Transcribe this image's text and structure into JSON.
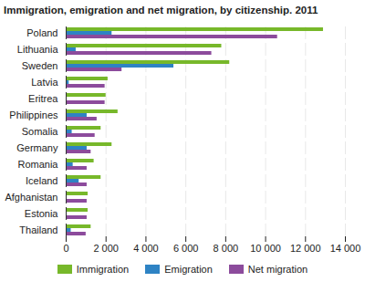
{
  "chart_data": {
    "type": "bar",
    "orientation": "horizontal",
    "title": "Immigration, emigration and net migration, by citizenship. 2011",
    "categories": [
      "Poland",
      "Lithuania",
      "Sweden",
      "Latvia",
      "Eritrea",
      "Philippines",
      "Somalia",
      "Germany",
      "Romania",
      "Iceland",
      "Afghanistan",
      "Estonia",
      "Thailand"
    ],
    "series": [
      {
        "name": "Immigration",
        "color": "#77b82a",
        "values": [
          12900,
          7800,
          8200,
          2100,
          2000,
          2600,
          1750,
          2300,
          1400,
          1750,
          1100,
          1100,
          1250
        ]
      },
      {
        "name": "Emigration",
        "color": "#2e83c4",
        "values": [
          2300,
          500,
          5400,
          150,
          50,
          1050,
          300,
          1050,
          350,
          650,
          50,
          50,
          250
        ]
      },
      {
        "name": "Net migration",
        "color": "#8c4b9c",
        "values": [
          10600,
          7300,
          2800,
          1950,
          1950,
          1550,
          1450,
          1250,
          1050,
          1050,
          1050,
          1050,
          1000
        ]
      }
    ],
    "xlim": [
      0,
      14000
    ],
    "xticks": [
      0,
      {
        "value": 2000,
        "label": "2 000"
      },
      {
        "value": 4000,
        "label": "4 000"
      },
      {
        "value": 6000,
        "label": "6 000"
      },
      {
        "value": 8000,
        "label": "8 000"
      },
      {
        "value": 10000,
        "label": "10 000"
      },
      {
        "value": 12000,
        "label": "12 000"
      },
      {
        "value": 14000,
        "label": "14 000"
      }
    ],
    "grid": true,
    "legend": "bottom"
  }
}
